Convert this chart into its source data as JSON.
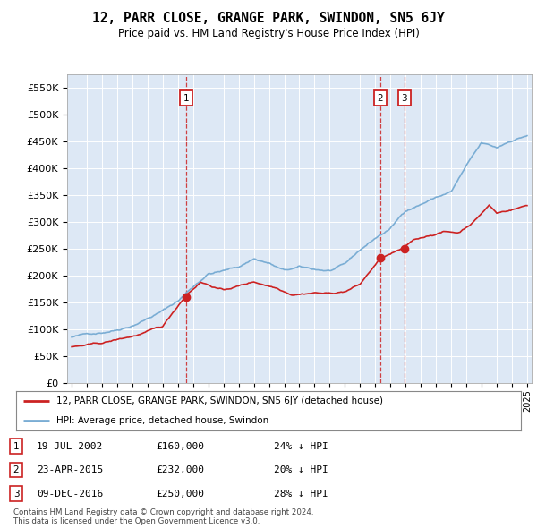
{
  "title": "12, PARR CLOSE, GRANGE PARK, SWINDON, SN5 6JY",
  "subtitle": "Price paid vs. HM Land Registry's House Price Index (HPI)",
  "bg_color": "#dde8f5",
  "sale_dates": [
    2002.55,
    2015.31,
    2016.92
  ],
  "sale_prices": [
    160000,
    232000,
    250000
  ],
  "sale_labels": [
    "1",
    "2",
    "3"
  ],
  "sale_info": [
    {
      "num": "1",
      "date": "19-JUL-2002",
      "price": "£160,000",
      "pct": "24% ↓ HPI"
    },
    {
      "num": "2",
      "date": "23-APR-2015",
      "price": "£232,000",
      "pct": "20% ↓ HPI"
    },
    {
      "num": "3",
      "date": "09-DEC-2016",
      "price": "£250,000",
      "pct": "28% ↓ HPI"
    }
  ],
  "legend_line1": "12, PARR CLOSE, GRANGE PARK, SWINDON, SN5 6JY (detached house)",
  "legend_line2": "HPI: Average price, detached house, Swindon",
  "footer": "Contains HM Land Registry data © Crown copyright and database right 2024.\nThis data is licensed under the Open Government Licence v3.0.",
  "hpi_color": "#7aadd4",
  "sale_color": "#cc2222",
  "ylim": [
    0,
    575000
  ],
  "yticks": [
    0,
    50000,
    100000,
    150000,
    200000,
    250000,
    300000,
    350000,
    400000,
    450000,
    500000,
    550000
  ],
  "xlim_start": 1994.7,
  "xlim_end": 2025.3
}
